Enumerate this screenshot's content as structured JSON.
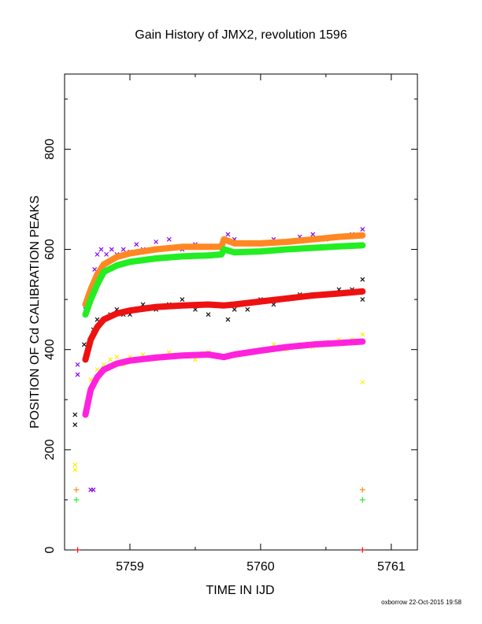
{
  "footer": "oxborrow 22-Oct-2015 19:58",
  "chart_data": {
    "type": "scatter",
    "title": "Gain History of JMX2, revolution 1596",
    "xlabel": "TIME IN IJD",
    "ylabel": "POSITION OF Cd CALIBRATION PEAKS",
    "xlim": [
      5758.5,
      5761.2
    ],
    "ylim": [
      0,
      950
    ],
    "xticks": [
      5759,
      5760,
      5761
    ],
    "yticks": [
      0,
      200,
      400,
      600,
      800
    ],
    "grid": false,
    "series": [
      {
        "marker": "x",
        "color": "#8800ee",
        "points": [
          [
            5758.6,
            370
          ],
          [
            5758.6,
            350
          ],
          [
            5758.66,
            480
          ],
          [
            5758.68,
            500
          ],
          [
            5758.7,
            520
          ],
          [
            5758.73,
            560
          ],
          [
            5758.75,
            590
          ],
          [
            5758.78,
            600
          ],
          [
            5758.82,
            590
          ],
          [
            5758.86,
            600
          ],
          [
            5758.9,
            590
          ],
          [
            5758.95,
            600
          ],
          [
            5759.0,
            595
          ],
          [
            5759.05,
            610
          ],
          [
            5759.1,
            600
          ],
          [
            5759.2,
            615
          ],
          [
            5759.3,
            620
          ],
          [
            5759.4,
            600
          ],
          [
            5759.5,
            610
          ],
          [
            5759.6,
            590
          ],
          [
            5759.7,
            605
          ],
          [
            5759.75,
            630
          ],
          [
            5759.8,
            620
          ],
          [
            5759.9,
            610
          ],
          [
            5760.0,
            610
          ],
          [
            5760.1,
            620
          ],
          [
            5760.2,
            615
          ],
          [
            5760.3,
            625
          ],
          [
            5760.4,
            630
          ],
          [
            5760.5,
            620
          ],
          [
            5760.6,
            625
          ],
          [
            5760.7,
            630
          ],
          [
            5760.78,
            640
          ],
          [
            5758.7,
            120
          ],
          [
            5758.72,
            120
          ]
        ]
      },
      {
        "marker": "x",
        "color": "#111111",
        "points": [
          [
            5758.58,
            270
          ],
          [
            5758.58,
            250
          ],
          [
            5758.65,
            410
          ],
          [
            5758.68,
            400
          ],
          [
            5758.72,
            440
          ],
          [
            5758.75,
            460
          ],
          [
            5758.8,
            460
          ],
          [
            5758.85,
            470
          ],
          [
            5758.9,
            480
          ],
          [
            5758.95,
            470
          ],
          [
            5759.0,
            470
          ],
          [
            5759.1,
            490
          ],
          [
            5759.2,
            480
          ],
          [
            5759.3,
            490
          ],
          [
            5759.4,
            500
          ],
          [
            5759.5,
            480
          ],
          [
            5759.6,
            470
          ],
          [
            5759.7,
            490
          ],
          [
            5759.75,
            460
          ],
          [
            5759.8,
            480
          ],
          [
            5759.9,
            480
          ],
          [
            5760.0,
            500
          ],
          [
            5760.1,
            490
          ],
          [
            5760.2,
            500
          ],
          [
            5760.3,
            510
          ],
          [
            5760.4,
            510
          ],
          [
            5760.5,
            510
          ],
          [
            5760.6,
            520
          ],
          [
            5760.7,
            520
          ],
          [
            5760.78,
            540
          ],
          [
            5760.78,
            500
          ]
        ]
      },
      {
        "marker": "x",
        "color": "#ffee00",
        "points": [
          [
            5758.58,
            170
          ],
          [
            5758.58,
            160
          ],
          [
            5758.7,
            340
          ],
          [
            5758.75,
            360
          ],
          [
            5758.8,
            370
          ],
          [
            5758.85,
            380
          ],
          [
            5758.9,
            385
          ],
          [
            5758.95,
            370
          ],
          [
            5759.0,
            385
          ],
          [
            5759.1,
            390
          ],
          [
            5759.2,
            385
          ],
          [
            5759.3,
            395
          ],
          [
            5759.4,
            390
          ],
          [
            5759.5,
            380
          ],
          [
            5759.6,
            395
          ],
          [
            5759.7,
            385
          ],
          [
            5759.8,
            390
          ],
          [
            5759.9,
            395
          ],
          [
            5760.0,
            400
          ],
          [
            5760.1,
            410
          ],
          [
            5760.2,
            400
          ],
          [
            5760.3,
            410
          ],
          [
            5760.4,
            405
          ],
          [
            5760.5,
            415
          ],
          [
            5760.6,
            420
          ],
          [
            5760.7,
            420
          ],
          [
            5760.78,
            430
          ],
          [
            5760.78,
            335
          ]
        ]
      },
      {
        "marker": "line-band",
        "color": "#ff8822",
        "points": [
          [
            5758.66,
            490
          ],
          [
            5758.7,
            520
          ],
          [
            5758.75,
            550
          ],
          [
            5758.8,
            570
          ],
          [
            5758.9,
            585
          ],
          [
            5759.0,
            592
          ],
          [
            5759.2,
            600
          ],
          [
            5759.4,
            605
          ],
          [
            5759.6,
            605
          ],
          [
            5759.7,
            605
          ],
          [
            5759.72,
            620
          ],
          [
            5759.8,
            612
          ],
          [
            5760.0,
            612
          ],
          [
            5760.2,
            615
          ],
          [
            5760.4,
            620
          ],
          [
            5760.6,
            625
          ],
          [
            5760.78,
            628
          ]
        ]
      },
      {
        "marker": "line-band",
        "color": "#22ee22",
        "points": [
          [
            5758.66,
            470
          ],
          [
            5758.7,
            500
          ],
          [
            5758.75,
            530
          ],
          [
            5758.8,
            555
          ],
          [
            5758.9,
            568
          ],
          [
            5759.0,
            575
          ],
          [
            5759.2,
            582
          ],
          [
            5759.4,
            586
          ],
          [
            5759.6,
            588
          ],
          [
            5759.7,
            590
          ],
          [
            5759.72,
            600
          ],
          [
            5759.8,
            594
          ],
          [
            5760.0,
            596
          ],
          [
            5760.2,
            600
          ],
          [
            5760.4,
            603
          ],
          [
            5760.6,
            606
          ],
          [
            5760.78,
            608
          ]
        ]
      },
      {
        "marker": "line-band",
        "color": "#ee1111",
        "points": [
          [
            5758.66,
            380
          ],
          [
            5758.7,
            420
          ],
          [
            5758.75,
            445
          ],
          [
            5758.8,
            460
          ],
          [
            5758.9,
            472
          ],
          [
            5759.0,
            478
          ],
          [
            5759.2,
            485
          ],
          [
            5759.4,
            488
          ],
          [
            5759.6,
            490
          ],
          [
            5759.72,
            488
          ],
          [
            5759.8,
            490
          ],
          [
            5760.0,
            496
          ],
          [
            5760.2,
            502
          ],
          [
            5760.4,
            508
          ],
          [
            5760.6,
            512
          ],
          [
            5760.78,
            516
          ]
        ]
      },
      {
        "marker": "line-band",
        "color": "#ff22dd",
        "points": [
          [
            5758.66,
            270
          ],
          [
            5758.7,
            320
          ],
          [
            5758.75,
            345
          ],
          [
            5758.8,
            360
          ],
          [
            5758.9,
            372
          ],
          [
            5759.0,
            378
          ],
          [
            5759.2,
            384
          ],
          [
            5759.4,
            388
          ],
          [
            5759.6,
            390
          ],
          [
            5759.72,
            385
          ],
          [
            5759.8,
            390
          ],
          [
            5760.0,
            398
          ],
          [
            5760.2,
            405
          ],
          [
            5760.4,
            410
          ],
          [
            5760.6,
            413
          ],
          [
            5760.78,
            416
          ]
        ]
      },
      {
        "marker": "+",
        "color": "#ff8822",
        "points": [
          [
            5758.59,
            120
          ],
          [
            5760.78,
            120
          ]
        ]
      },
      {
        "marker": "+",
        "color": "#22ee22",
        "points": [
          [
            5758.59,
            100
          ],
          [
            5760.78,
            100
          ]
        ]
      },
      {
        "marker": "+",
        "color": "#ee1111",
        "points": [
          [
            5758.6,
            0
          ],
          [
            5760.78,
            0
          ]
        ]
      }
    ]
  }
}
